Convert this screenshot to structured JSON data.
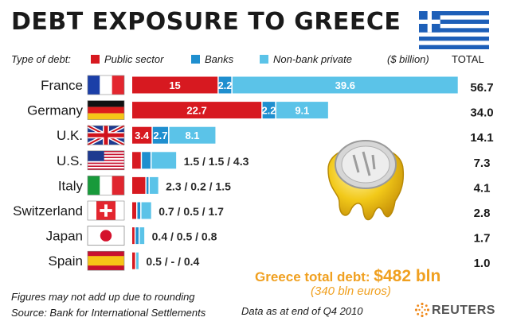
{
  "title": "DEBT EXPOSURE TO GREECE",
  "legend": {
    "type_label": "Type of debt:",
    "units": "($ billion)",
    "total_label": "TOTAL"
  },
  "colors": {
    "public": "#d71920",
    "banks": "#1f8fcf",
    "nonbank": "#5bc3e8",
    "accent": "#f0a020"
  },
  "chart_data": {
    "type": "bar",
    "orientation": "horizontal",
    "stacked": true,
    "title": "DEBT EXPOSURE TO GREECE",
    "units": "($ billion)",
    "categories": [
      "France",
      "Germany",
      "U.K.",
      "U.S.",
      "Italy",
      "Switzerland",
      "Japan",
      "Spain"
    ],
    "series": [
      {
        "name": "Public sector",
        "values": [
          15,
          22.7,
          3.4,
          1.5,
          2.3,
          0.7,
          0.4,
          0.5
        ]
      },
      {
        "name": "Banks",
        "values": [
          2.2,
          2.2,
          2.7,
          1.5,
          0.2,
          0.5,
          0.5,
          0
        ]
      },
      {
        "name": "Non-bank private",
        "values": [
          39.6,
          9.1,
          8.1,
          4.3,
          1.5,
          1.7,
          0.8,
          0.4
        ]
      }
    ],
    "totals": [
      "56.7",
      "34.0",
      "14.1",
      "7.3",
      "4.1",
      "2.8",
      "1.7",
      "1.0"
    ],
    "inside_labels": [
      [
        "15",
        "2.2",
        "39.6"
      ],
      [
        "22.7",
        "2.2",
        "9.1"
      ],
      [
        "3.4",
        "2.7",
        "8.1"
      ],
      [],
      [],
      [],
      [],
      []
    ],
    "outside_labels": [
      "",
      "",
      "",
      "1.5 / 1.5 / 4.3",
      "2.3 / 0.2 / 1.5",
      "0.7 / 0.5 / 1.7",
      "0.4 / 0.5 / 0.8",
      "0.5 / - / 0.4"
    ],
    "flags": [
      "flag-france-icon",
      "flag-germany-icon",
      "flag-uk-icon",
      "flag-us-icon",
      "flag-italy-icon",
      "flag-switzerland-icon",
      "flag-japan-icon",
      "flag-spain-icon"
    ],
    "xlim": [
      0,
      56.7
    ]
  },
  "footer": {
    "note1": "Figures may not add up due to rounding",
    "source": "Source: Bank for International Settlements",
    "data_note": "Data as at end of Q4 2010",
    "total_label": "Greece total debt:",
    "total_value": "$482 bln",
    "total_euros": "(340 bln euros)",
    "brand": "REUTERS"
  },
  "icons": {
    "header_flag": "flag-greece-icon",
    "coin": "melting-euro-coin-icon",
    "brand_mark": "reuters-logo-icon"
  }
}
